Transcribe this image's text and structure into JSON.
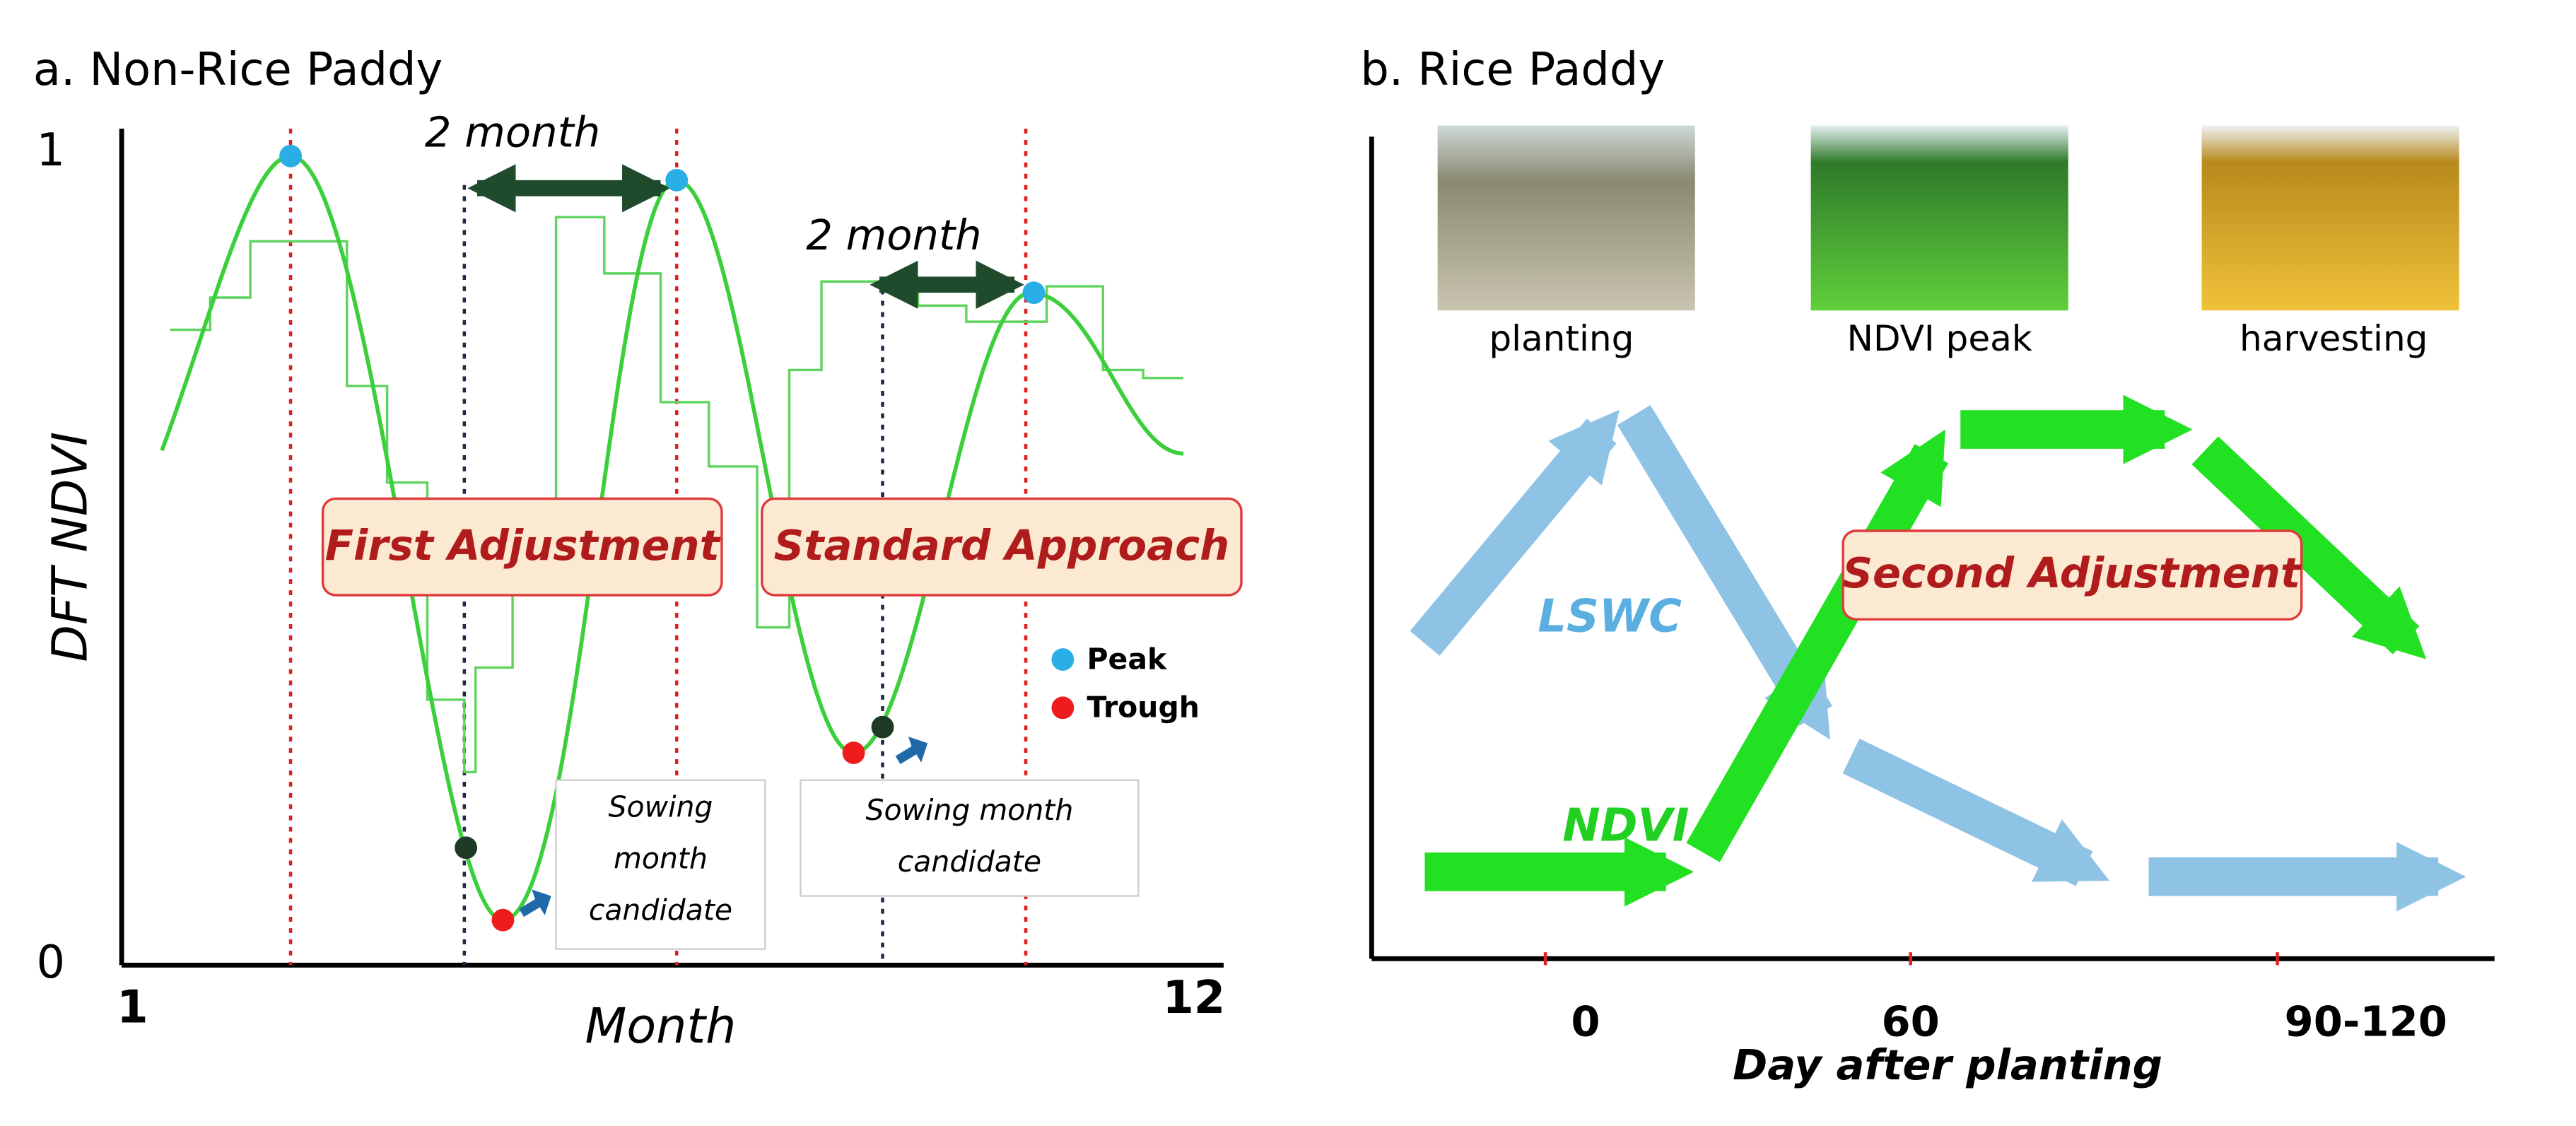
{
  "panel_a": {
    "title": "a. Non-Rice Paddy",
    "y_top": "1",
    "y_bottom": "0",
    "x_left": "1",
    "x_right": "12",
    "x_label": "Month",
    "y_label": "DFT NDVI",
    "interval_1": "2 month",
    "interval_2": "2 month",
    "label_1": "First Adjustment",
    "label_2": "Standard Approach",
    "legend": [
      "Peak",
      "Trough"
    ],
    "note_1": [
      "Sowing",
      "month",
      "candidate"
    ],
    "note_2": [
      "Sowing month",
      "candidate"
    ]
  },
  "panel_b": {
    "title": "b. Rice Paddy",
    "photos": [
      "planting",
      "NDVI peak",
      "harvesting"
    ],
    "series_1": "LSWC",
    "series_2": "NDVI",
    "label": "Second Adjustment",
    "ticks": [
      "0",
      "60",
      "90-120"
    ],
    "x_label": "Day after planting"
  }
}
